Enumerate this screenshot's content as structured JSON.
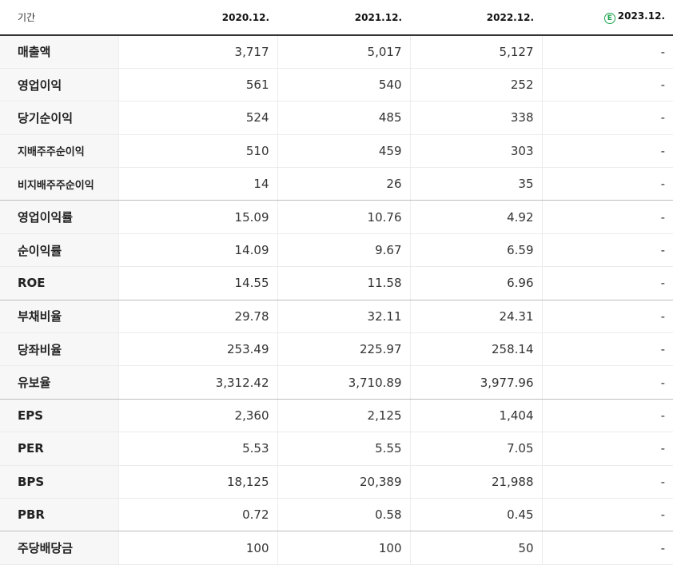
{
  "header": {
    "period_label": "기간",
    "columns": [
      "2020.12.",
      "2021.12.",
      "2022.12.",
      "2023.12."
    ],
    "estimate_badge": "E"
  },
  "rows": [
    {
      "label": "매출액",
      "values": [
        "3,717",
        "5,017",
        "5,127",
        "-"
      ]
    },
    {
      "label": "영업이익",
      "values": [
        "561",
        "540",
        "252",
        "-"
      ]
    },
    {
      "label": "당기순이익",
      "values": [
        "524",
        "485",
        "338",
        "-"
      ]
    },
    {
      "label": "지배주주순이익",
      "values": [
        "510",
        "459",
        "303",
        "-"
      ]
    },
    {
      "label": "비지배주주순이익",
      "values": [
        "14",
        "26",
        "35",
        "-"
      ]
    },
    {
      "label": "영업이익률",
      "values": [
        "15.09",
        "10.76",
        "4.92",
        "-"
      ]
    },
    {
      "label": "순이익률",
      "values": [
        "14.09",
        "9.67",
        "6.59",
        "-"
      ]
    },
    {
      "label": "ROE",
      "values": [
        "14.55",
        "11.58",
        "6.96",
        "-"
      ]
    },
    {
      "label": "부채비율",
      "values": [
        "29.78",
        "32.11",
        "24.31",
        "-"
      ]
    },
    {
      "label": "당좌비율",
      "values": [
        "253.49",
        "225.97",
        "258.14",
        "-"
      ]
    },
    {
      "label": "유보율",
      "values": [
        "3,312.42",
        "3,710.89",
        "3,977.96",
        "-"
      ]
    },
    {
      "label": "EPS",
      "values": [
        "2,360",
        "2,125",
        "1,404",
        "-"
      ]
    },
    {
      "label": "PER",
      "values": [
        "5.53",
        "5.55",
        "7.05",
        "-"
      ]
    },
    {
      "label": "BPS",
      "values": [
        "18,125",
        "20,389",
        "21,988",
        "-"
      ]
    },
    {
      "label": "PBR",
      "values": [
        "0.72",
        "0.58",
        "0.45",
        "-"
      ]
    },
    {
      "label": "주당배당금",
      "values": [
        "100",
        "100",
        "50",
        "-"
      ]
    }
  ]
}
